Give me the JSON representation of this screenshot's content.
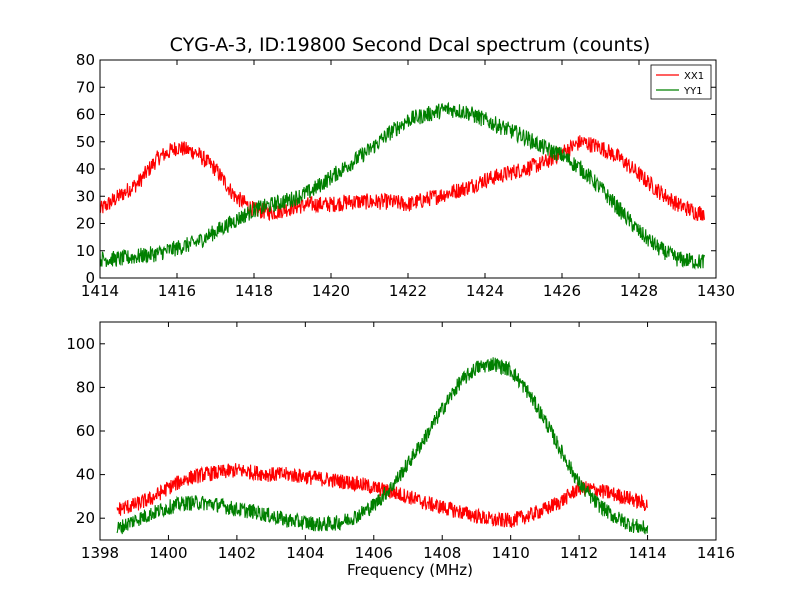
{
  "chart_data": [
    {
      "type": "line",
      "title": "CYG-A-3, ID:19800 Second Dcal spectrum (counts)",
      "xlabel": "",
      "ylabel": "",
      "xlim": [
        1414,
        1430
      ],
      "ylim": [
        0,
        80
      ],
      "xticks": [
        1414,
        1416,
        1418,
        1420,
        1422,
        1424,
        1426,
        1428,
        1430
      ],
      "yticks": [
        0,
        10,
        20,
        30,
        40,
        50,
        60,
        70,
        80
      ],
      "legend": {
        "position": "top-right",
        "entries": [
          "XX1",
          "YY1"
        ]
      },
      "series": [
        {
          "name": "XX1",
          "color": "#ff0000",
          "x": [
            1414.0,
            1414.5,
            1415.0,
            1415.5,
            1416.0,
            1416.5,
            1417.0,
            1417.5,
            1418.0,
            1418.5,
            1419.0,
            1419.5,
            1420.0,
            1420.5,
            1421.0,
            1421.5,
            1422.0,
            1422.5,
            1423.0,
            1423.5,
            1424.0,
            1424.5,
            1425.0,
            1425.5,
            1426.0,
            1426.5,
            1427.0,
            1427.5,
            1428.0,
            1428.5,
            1429.0,
            1429.5,
            1429.7
          ],
          "y": [
            25,
            30,
            35,
            44,
            48,
            46,
            40,
            30,
            25,
            24,
            26,
            27,
            27,
            28,
            28,
            28,
            27,
            29,
            31,
            33,
            36,
            38,
            40,
            42,
            46,
            50,
            48,
            44,
            38,
            32,
            27,
            24,
            24
          ]
        },
        {
          "name": "YY1",
          "color": "#008000",
          "x": [
            1414.0,
            1414.5,
            1415.0,
            1415.5,
            1416.0,
            1416.5,
            1417.0,
            1417.5,
            1418.0,
            1418.5,
            1419.0,
            1419.5,
            1420.0,
            1420.5,
            1421.0,
            1421.5,
            1422.0,
            1422.5,
            1423.0,
            1423.5,
            1424.0,
            1424.5,
            1425.0,
            1425.5,
            1426.0,
            1426.5,
            1427.0,
            1427.5,
            1428.0,
            1428.5,
            1429.0,
            1429.5,
            1429.7
          ],
          "y": [
            7,
            7,
            8,
            9,
            11,
            13,
            17,
            21,
            25,
            27,
            29,
            32,
            37,
            42,
            47,
            53,
            58,
            60,
            62,
            61,
            58,
            55,
            52,
            48,
            45,
            40,
            33,
            25,
            17,
            11,
            7,
            6,
            6
          ]
        }
      ]
    },
    {
      "type": "line",
      "title": "",
      "xlabel": "Frequency (MHz)",
      "ylabel": "",
      "xlim": [
        1398,
        1416
      ],
      "ylim": [
        10,
        110
      ],
      "xticks": [
        1398,
        1400,
        1402,
        1404,
        1406,
        1408,
        1410,
        1412,
        1414,
        1416
      ],
      "yticks": [
        20,
        40,
        60,
        80,
        100
      ],
      "series": [
        {
          "name": "XX1",
          "color": "#ff0000",
          "x": [
            1398.5,
            1399.0,
            1399.5,
            1400.0,
            1400.5,
            1401.0,
            1401.5,
            1402.0,
            1402.5,
            1403.0,
            1403.5,
            1404.0,
            1404.5,
            1405.0,
            1405.5,
            1406.0,
            1406.5,
            1407.0,
            1407.5,
            1408.0,
            1408.5,
            1409.0,
            1409.5,
            1410.0,
            1410.5,
            1411.0,
            1411.5,
            1412.0,
            1412.5,
            1413.0,
            1413.5,
            1414.0
          ],
          "y": [
            24,
            26,
            29,
            34,
            38,
            40,
            41,
            42,
            41,
            40,
            40,
            39,
            38,
            37,
            36,
            34,
            32,
            30,
            27,
            25,
            23,
            21,
            19,
            19,
            21,
            24,
            28,
            34,
            33,
            31,
            29,
            26
          ]
        },
        {
          "name": "YY1",
          "color": "#008000",
          "x": [
            1398.5,
            1399.0,
            1399.5,
            1400.0,
            1400.5,
            1401.0,
            1401.5,
            1402.0,
            1402.5,
            1403.0,
            1403.5,
            1404.0,
            1404.5,
            1405.0,
            1405.5,
            1406.0,
            1406.5,
            1407.0,
            1407.5,
            1408.0,
            1408.5,
            1409.0,
            1409.5,
            1410.0,
            1410.5,
            1411.0,
            1411.5,
            1412.0,
            1412.5,
            1413.0,
            1413.5,
            1414.0
          ],
          "y": [
            15,
            19,
            22,
            25,
            27,
            27,
            26,
            24,
            23,
            21,
            19,
            18,
            17,
            18,
            21,
            26,
            34,
            45,
            57,
            70,
            82,
            89,
            91,
            88,
            78,
            65,
            50,
            36,
            27,
            21,
            17,
            15
          ]
        }
      ]
    }
  ]
}
